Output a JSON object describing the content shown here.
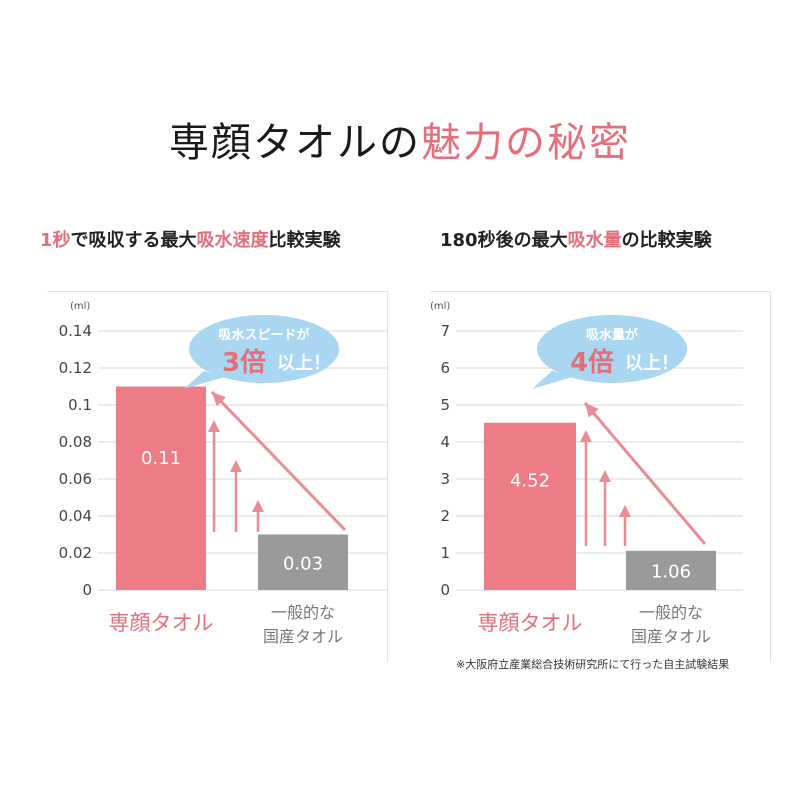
{
  "title": {
    "part1": "専顔タオルの",
    "part2": "魅力の秘密"
  },
  "colors": {
    "accent": "#e46f7b",
    "bar_primary": "#ee7c86",
    "bar_secondary": "#9a9a9a",
    "bubble": "#a9d6f0",
    "arrow": "#eb8c95"
  },
  "footnote": "※大阪府立産業総合技術研究所にて行った自主試験結果",
  "chart_data": [
    {
      "type": "bar",
      "title_parts": [
        "1秒",
        "で吸収する最大",
        "吸水速度",
        "比較実験"
      ],
      "unit": "(ml)",
      "categories": [
        "専顔タオル",
        "一般的な\n国産タオル"
      ],
      "values": [
        0.11,
        0.03
      ],
      "value_labels": [
        "0.11",
        "0.03"
      ],
      "ylim": [
        0,
        0.14
      ],
      "yticks": [
        "0",
        "0.02",
        "0.04",
        "0.06",
        "0.08",
        "0.1",
        "0.12",
        "0.14"
      ],
      "callout": {
        "line1": "吸水スピードが",
        "big": "3倍",
        "rest": "以上！"
      }
    },
    {
      "type": "bar",
      "title_parts": [
        "180秒後の最大",
        "吸水量",
        "の比較実験"
      ],
      "unit": "(ml)",
      "categories": [
        "専顔タオル",
        "一般的な\n国産タオル"
      ],
      "values": [
        4.52,
        1.06
      ],
      "value_labels": [
        "4.52",
        "1.06"
      ],
      "ylim": [
        0,
        7
      ],
      "yticks": [
        "0",
        "1",
        "2",
        "3",
        "4",
        "5",
        "6",
        "7"
      ],
      "callout": {
        "line1": "吸水量が",
        "big": "4倍",
        "rest": "以上！"
      }
    }
  ]
}
